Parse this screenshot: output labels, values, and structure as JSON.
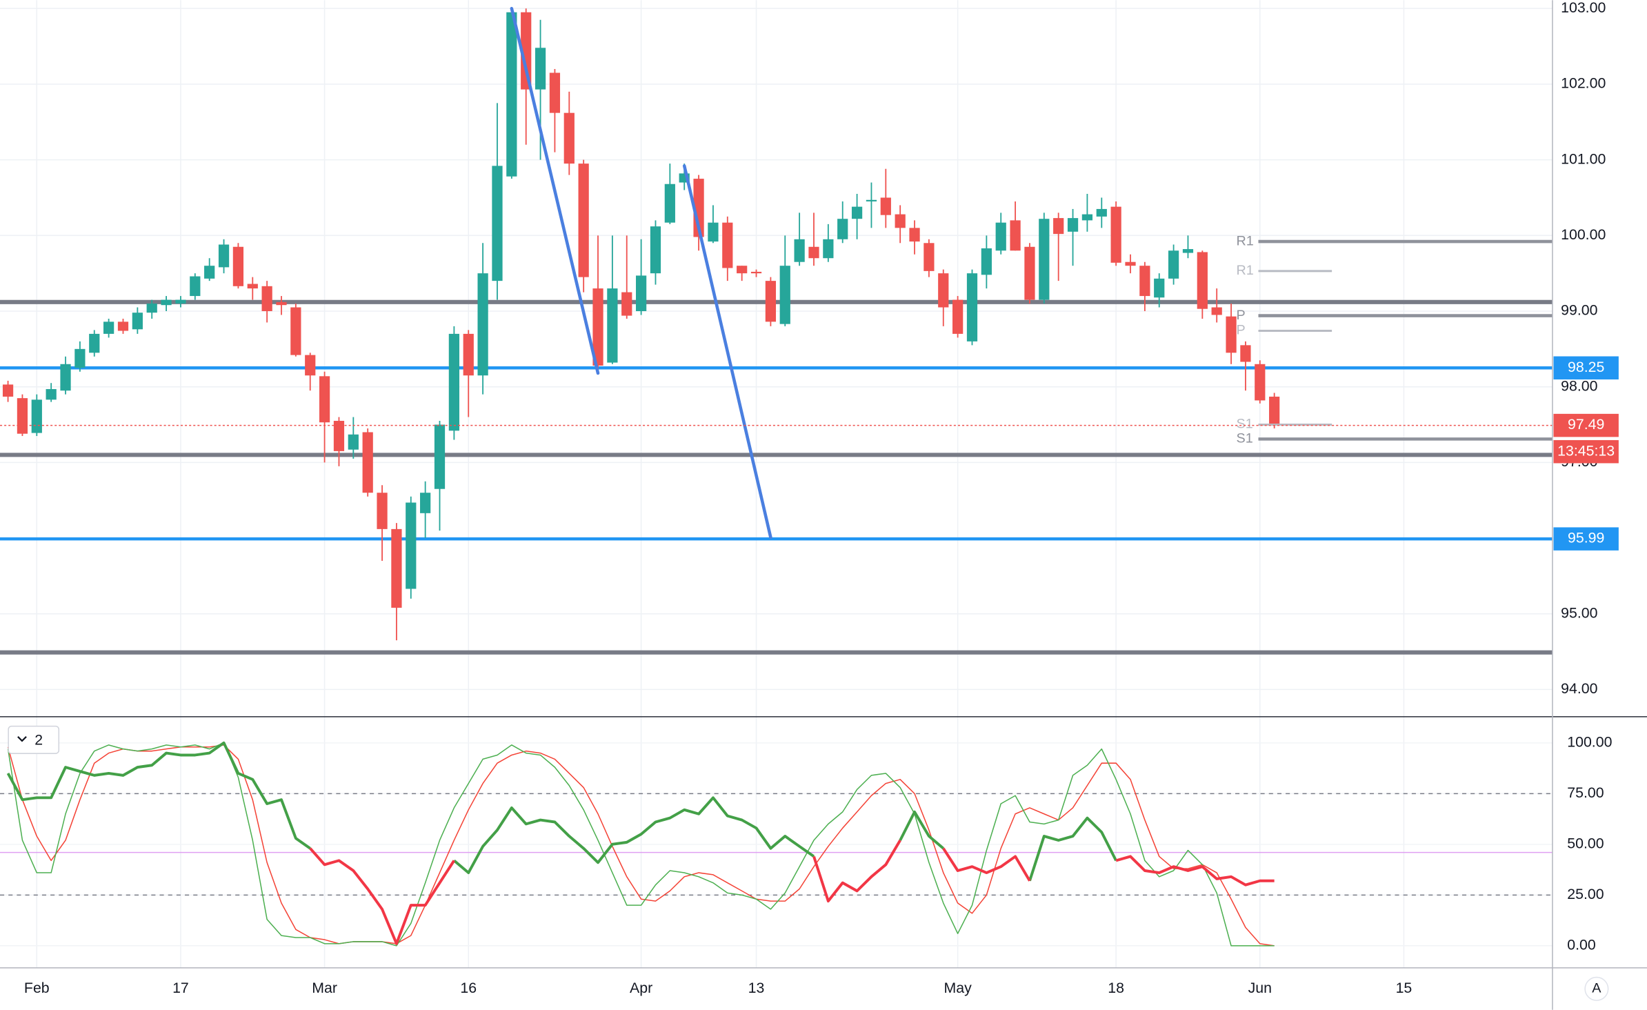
{
  "chart_data": [
    {
      "type": "candlestick",
      "categories": [
        "Jan 30",
        "Jan 31",
        "Feb 3",
        "Feb 4",
        "Feb 5",
        "Feb 6",
        "Feb 7",
        "Feb 10",
        "Feb 11",
        "Feb 12",
        "Feb 13",
        "Feb 14",
        "Feb 17",
        "Feb 18",
        "Feb 19",
        "Feb 20",
        "Feb 21",
        "Feb 24",
        "Feb 25",
        "Feb 26",
        "Feb 27",
        "Feb 28",
        "Mar 2",
        "Mar 3",
        "Mar 4",
        "Mar 5",
        "Mar 6",
        "Mar 9",
        "Mar 10",
        "Mar 11",
        "Mar 12",
        "Mar 13",
        "Mar 16",
        "Mar 17",
        "Mar 18",
        "Mar 19",
        "Mar 20",
        "Mar 23",
        "Mar 24",
        "Mar 25",
        "Mar 26",
        "Mar 27",
        "Mar 30",
        "Mar 31",
        "Apr 1",
        "Apr 2",
        "Apr 3",
        "Apr 6",
        "Apr 7",
        "Apr 8",
        "Apr 9",
        "Apr 10",
        "Apr 13",
        "Apr 14",
        "Apr 15",
        "Apr 16",
        "Apr 17",
        "Apr 20",
        "Apr 21",
        "Apr 22",
        "Apr 23",
        "Apr 24",
        "Apr 27",
        "Apr 28",
        "Apr 29",
        "Apr 30",
        "May 1",
        "May 4",
        "May 5",
        "May 6",
        "May 7",
        "May 8",
        "May 11",
        "May 12",
        "May 13",
        "May 14",
        "May 15",
        "May 18",
        "May 19",
        "May 20",
        "May 21",
        "May 22",
        "May 25",
        "May 26",
        "May 27",
        "May 28",
        "May 29",
        "Jun 1",
        "Jun 2",
        "Jun 3",
        "Jun 4",
        "Jun 5",
        "Jun 8",
        "Jun 9",
        "Jun 10",
        "Jun 11",
        "Jun 12",
        "Jun 15"
      ],
      "open": [
        98.03,
        97.85,
        97.39,
        97.83,
        97.95,
        98.25,
        98.45,
        98.7,
        98.86,
        98.76,
        98.98,
        99.08,
        99.1,
        99.2,
        99.43,
        99.58,
        99.85,
        99.36,
        99.33,
        99.12,
        99.05,
        98.42,
        98.14,
        97.55,
        97.17,
        97.4,
        96.6,
        96.12,
        95.33,
        96.33,
        96.65,
        97.42,
        98.7,
        98.15,
        99.4,
        100.78,
        102.95,
        101.93,
        102.15,
        101.62,
        100.95,
        99.3,
        98.32,
        99.25,
        99.0,
        99.5,
        100.17,
        100.7,
        100.75,
        99.92,
        100.17,
        99.6,
        99.52,
        99.4,
        98.83,
        99.65,
        99.85,
        99.7,
        99.95,
        100.22,
        100.45,
        100.5,
        100.28,
        100.1,
        99.9,
        99.5,
        99.15,
        98.6,
        99.48,
        99.8,
        100.2,
        99.85,
        99.15,
        100.23,
        100.05,
        100.2,
        100.25,
        100.38,
        99.65,
        99.6,
        99.18,
        99.43,
        99.77,
        99.78,
        99.05,
        98.93,
        98.55,
        98.3,
        97.87,
        null,
        null,
        null,
        null,
        null,
        null,
        null,
        null,
        null
      ],
      "high": [
        98.08,
        97.9,
        97.9,
        98.05,
        98.4,
        98.6,
        98.75,
        98.9,
        98.9,
        99.05,
        99.15,
        99.2,
        99.2,
        99.5,
        99.7,
        99.95,
        99.9,
        99.45,
        99.4,
        99.2,
        99.1,
        98.45,
        98.2,
        97.6,
        97.6,
        97.45,
        96.7,
        96.2,
        96.55,
        96.75,
        97.55,
        98.8,
        98.75,
        99.9,
        101.75,
        103.0,
        103.0,
        102.85,
        102.2,
        101.9,
        101.0,
        100.0,
        100.0,
        100.0,
        99.95,
        100.2,
        100.95,
        100.95,
        100.8,
        100.4,
        100.25,
        99.6,
        99.55,
        99.45,
        100.0,
        100.3,
        100.3,
        100.15,
        100.45,
        100.55,
        100.7,
        100.88,
        100.4,
        100.2,
        99.95,
        99.55,
        99.2,
        99.55,
        100.0,
        100.3,
        100.45,
        99.9,
        100.3,
        100.3,
        100.35,
        100.55,
        100.5,
        100.45,
        99.75,
        99.65,
        99.5,
        99.88,
        100.0,
        99.8,
        99.3,
        99.1,
        98.6,
        98.35,
        97.92,
        null,
        null,
        null,
        null,
        null,
        null,
        null,
        null,
        null
      ],
      "low": [
        97.8,
        97.35,
        97.35,
        97.8,
        97.9,
        98.2,
        98.4,
        98.65,
        98.7,
        98.7,
        98.9,
        99.0,
        99.05,
        99.15,
        99.4,
        99.5,
        99.3,
        99.15,
        98.85,
        98.95,
        98.4,
        97.95,
        97.0,
        96.95,
        97.05,
        96.55,
        95.7,
        94.65,
        95.2,
        96.0,
        96.1,
        97.3,
        97.6,
        97.9,
        99.15,
        100.75,
        101.2,
        101.0,
        101.1,
        100.8,
        99.25,
        98.2,
        98.3,
        98.9,
        98.95,
        99.35,
        100.15,
        100.6,
        99.8,
        99.9,
        99.4,
        99.4,
        99.45,
        98.8,
        98.8,
        99.6,
        99.6,
        99.65,
        99.9,
        99.95,
        100.1,
        100.1,
        99.9,
        99.75,
        99.45,
        98.8,
        98.65,
        98.55,
        99.3,
        99.75,
        99.8,
        99.1,
        99.1,
        99.4,
        99.6,
        100.05,
        100.1,
        99.6,
        99.5,
        99.0,
        99.05,
        99.35,
        99.7,
        98.9,
        98.85,
        98.3,
        97.95,
        97.78,
        97.45,
        null,
        null,
        null,
        null,
        null,
        null,
        null,
        null,
        null
      ],
      "close": [
        97.87,
        97.38,
        97.83,
        97.97,
        98.3,
        98.5,
        98.7,
        98.86,
        98.74,
        98.98,
        99.1,
        99.15,
        99.15,
        99.46,
        99.6,
        99.88,
        99.33,
        99.3,
        99.0,
        99.08,
        98.42,
        98.15,
        97.53,
        97.15,
        97.37,
        96.6,
        96.12,
        95.08,
        96.47,
        96.6,
        97.5,
        98.7,
        98.15,
        99.5,
        100.92,
        102.95,
        101.93,
        102.48,
        101.62,
        100.95,
        99.45,
        98.28,
        99.3,
        98.94,
        99.47,
        100.12,
        100.68,
        100.82,
        99.98,
        100.17,
        99.57,
        99.5,
        99.5,
        98.86,
        99.6,
        99.95,
        99.7,
        99.95,
        100.22,
        100.38,
        100.47,
        100.27,
        100.1,
        99.92,
        99.53,
        99.05,
        98.7,
        99.5,
        99.83,
        100.17,
        99.8,
        99.15,
        100.22,
        100.02,
        100.23,
        100.28,
        100.35,
        99.64,
        99.6,
        99.2,
        99.43,
        99.8,
        99.82,
        99.03,
        98.95,
        98.45,
        98.33,
        97.82,
        97.49,
        null,
        null,
        null,
        null,
        null,
        null,
        null,
        null,
        null
      ],
      "up_color": "#26a69a",
      "down_color": "#ef5350",
      "ylim": [
        93.64,
        103.11
      ],
      "yticks": [
        {
          "value": 94,
          "label": "94.00"
        },
        {
          "value": 95,
          "label": "95.00"
        },
        {
          "value": 97,
          "label": "97.00"
        },
        {
          "value": 98,
          "label": "98.00"
        },
        {
          "value": 99,
          "label": "99.00"
        },
        {
          "value": 100,
          "label": "100.00"
        },
        {
          "value": 101,
          "label": "101.00"
        },
        {
          "value": 102,
          "label": "102.00"
        },
        {
          "value": 103,
          "label": "103.00"
        }
      ],
      "xticks": [
        {
          "value": "Feb 3",
          "label": "Feb"
        },
        {
          "value": "Feb 17",
          "label": "17"
        },
        {
          "value": "Mar 2",
          "label": "Mar"
        },
        {
          "value": "Mar 16",
          "label": "16"
        },
        {
          "value": "Apr 1",
          "label": "Apr"
        },
        {
          "value": "Apr 13",
          "label": "13"
        },
        {
          "value": "May 1",
          "label": "May"
        },
        {
          "value": "May 18",
          "label": "18"
        },
        {
          "value": "Jun 1",
          "label": "Jun"
        },
        {
          "value": "Jun 15",
          "label": "15"
        }
      ],
      "grid": true,
      "hlines": [
        {
          "value": 99.12,
          "color": "#787b86",
          "width": 4
        },
        {
          "value": 98.25,
          "color": "#2196f3",
          "width": 3,
          "badge": true
        },
        {
          "value": 97.1,
          "color": "#787b86",
          "width": 4
        },
        {
          "value": 95.99,
          "color": "#2196f3",
          "width": 3,
          "badge": true
        },
        {
          "value": 94.49,
          "color": "#787b86",
          "width": 4
        }
      ],
      "trendlines": [
        {
          "x": [
            "Mar 19",
            "Mar 27"
          ],
          "y": [
            103.0,
            98.18
          ],
          "color": "#4a7fe0"
        },
        {
          "x": [
            "Apr 6",
            "Apr 14"
          ],
          "y": [
            100.92,
            96.01
          ],
          "color": "#4a7fe0"
        }
      ],
      "pivots": [
        {
          "label": "R1",
          "value": 99.92,
          "style": "main"
        },
        {
          "label": "R1",
          "value": 99.53,
          "style": "faint"
        },
        {
          "label": "P",
          "value": 98.94,
          "style": "main"
        },
        {
          "label": "P",
          "value": 98.74,
          "style": "faint"
        },
        {
          "label": "S1",
          "value": 97.5,
          "style": "faint"
        },
        {
          "label": "S1",
          "value": 97.31,
          "style": "main"
        }
      ],
      "last_price_color": "#ef5350",
      "countdown": "13:45:13"
    },
    {
      "type": "line",
      "legend": "2",
      "ylim": [
        -10.9,
        112.4
      ],
      "yticks": [
        {
          "value": 0,
          "label": "0.00"
        },
        {
          "value": 25,
          "label": "25.00"
        },
        {
          "value": 50,
          "label": "50.00"
        },
        {
          "value": 75,
          "label": "75.00"
        },
        {
          "value": 100,
          "label": "100.00"
        }
      ],
      "hlines": [
        {
          "value": 75,
          "style": "dashed",
          "color": "#787b86"
        },
        {
          "value": 25,
          "style": "dashed",
          "color": "#787b86"
        },
        {
          "value": 46,
          "style": "solid",
          "color": "#df9ff2"
        }
      ],
      "series": [
        {
          "color": "#f44336",
          "width": 1,
          "values": [
            98,
            72,
            54,
            42,
            52,
            72,
            90,
            95,
            97,
            96,
            96,
            97,
            98,
            98,
            98,
            99,
            92,
            72,
            41,
            21,
            8,
            4,
            3,
            1,
            2,
            2,
            2,
            1,
            5,
            20,
            36,
            52,
            67,
            80,
            90,
            94,
            96,
            95,
            92,
            85,
            78,
            65,
            49,
            34,
            23,
            22,
            27,
            34,
            36,
            35,
            31,
            27,
            23,
            22,
            22,
            28,
            39,
            49,
            58,
            66,
            74,
            80,
            82,
            75,
            57,
            36,
            21,
            16,
            25,
            48,
            65,
            68,
            65,
            62,
            68,
            79,
            90,
            90,
            82,
            62,
            44,
            38,
            38,
            40,
            36,
            23,
            9,
            1,
            0,
            null,
            null,
            null,
            null,
            null,
            null,
            null,
            null,
            null
          ]
        },
        {
          "color": "#4caf50",
          "width": 1,
          "values": [
            97,
            52,
            36,
            36,
            65,
            85,
            96,
            99,
            97,
            96,
            97,
            99,
            98,
            99,
            97,
            100,
            83,
            52,
            13,
            5,
            4,
            4,
            1,
            1,
            2,
            2,
            2,
            0,
            11,
            31,
            52,
            68,
            80,
            92,
            94,
            99,
            95,
            94,
            88,
            79,
            67,
            52,
            36,
            20,
            20,
            30,
            37,
            36,
            34,
            31,
            26,
            25,
            23,
            18,
            26,
            39,
            52,
            60,
            66,
            77,
            84,
            85,
            78,
            65,
            41,
            21,
            6,
            20,
            47,
            70,
            74,
            61,
            60,
            62,
            84,
            89,
            97,
            82,
            65,
            42,
            34,
            37,
            47,
            40,
            26,
            0,
            0,
            0,
            0,
            null,
            null,
            null,
            null,
            null,
            null,
            null,
            null,
            null
          ]
        },
        {
          "color": "#43a047",
          "width": 2.6,
          "values": [
            85,
            72,
            73,
            73,
            88,
            86,
            84,
            85,
            84,
            88,
            89,
            95,
            94,
            94,
            95,
            100,
            85,
            82,
            70,
            72,
            53,
            48,
            null,
            null,
            null,
            null,
            null,
            null,
            null,
            null,
            null,
            42,
            36,
            49,
            57,
            68,
            60,
            62,
            61,
            54,
            48,
            41,
            50,
            51,
            55,
            61,
            63,
            67,
            65,
            73,
            64,
            62,
            58,
            48,
            54,
            49,
            44,
            null,
            null,
            null,
            null,
            null,
            52,
            66,
            54,
            48,
            null,
            null,
            null,
            null,
            null,
            32,
            54,
            52,
            54,
            63,
            56,
            42,
            null,
            null,
            null,
            null,
            null,
            null,
            null,
            null,
            null,
            null,
            null,
            null,
            null,
            null,
            null,
            null,
            null,
            null,
            null,
            null
          ]
        },
        {
          "color": "#f23645",
          "width": 2.6,
          "values": [
            null,
            null,
            null,
            null,
            null,
            null,
            null,
            null,
            null,
            null,
            null,
            null,
            null,
            null,
            null,
            null,
            null,
            null,
            null,
            null,
            null,
            48,
            40,
            42,
            37,
            28,
            18,
            1,
            20,
            20,
            31,
            42,
            null,
            null,
            null,
            null,
            null,
            null,
            null,
            null,
            null,
            null,
            null,
            null,
            null,
            null,
            null,
            null,
            null,
            null,
            null,
            null,
            null,
            null,
            null,
            null,
            44,
            22,
            31,
            27,
            34,
            40,
            52,
            null,
            null,
            48,
            37,
            39,
            36,
            39,
            44,
            32,
            null,
            null,
            null,
            null,
            null,
            42,
            44,
            37,
            36,
            39,
            37,
            39,
            33,
            34,
            30,
            32,
            32,
            null,
            null,
            null,
            null,
            null,
            null,
            null,
            null,
            null
          ]
        }
      ]
    }
  ],
  "ui": {
    "auto_button": "A"
  }
}
